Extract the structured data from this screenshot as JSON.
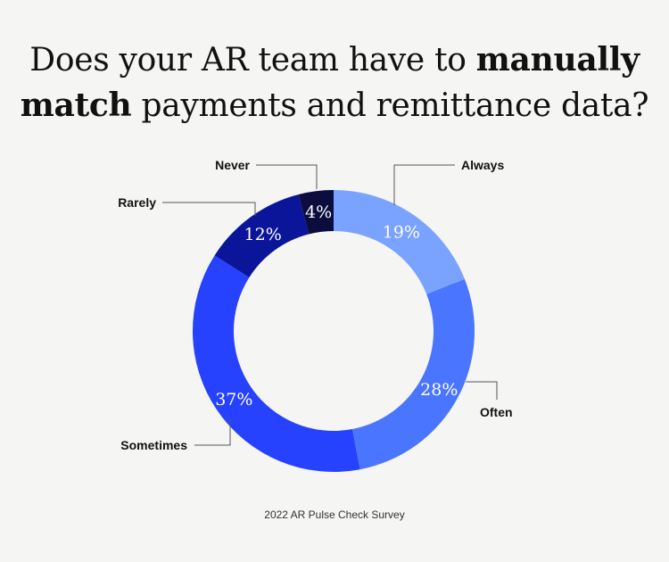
{
  "title": {
    "line1_prefix": "Does your AR team have to ",
    "line1_bold": "manually",
    "line2_bold": "match",
    "line2_suffix": " payments and remittance data?"
  },
  "chart_data": {
    "type": "pie",
    "categories": [
      "Always",
      "Often",
      "Sometimes",
      "Rarely",
      "Never"
    ],
    "values": [
      19,
      28,
      37,
      12,
      4
    ],
    "value_labels": [
      "19%",
      "28%",
      "37%",
      "12%",
      "4%"
    ],
    "colors": [
      "#7aa2ff",
      "#4a75ff",
      "#2742ff",
      "#0b1599",
      "#0a0d3d"
    ],
    "donut": true
  },
  "footer": "2022 AR Pulse Check Survey"
}
